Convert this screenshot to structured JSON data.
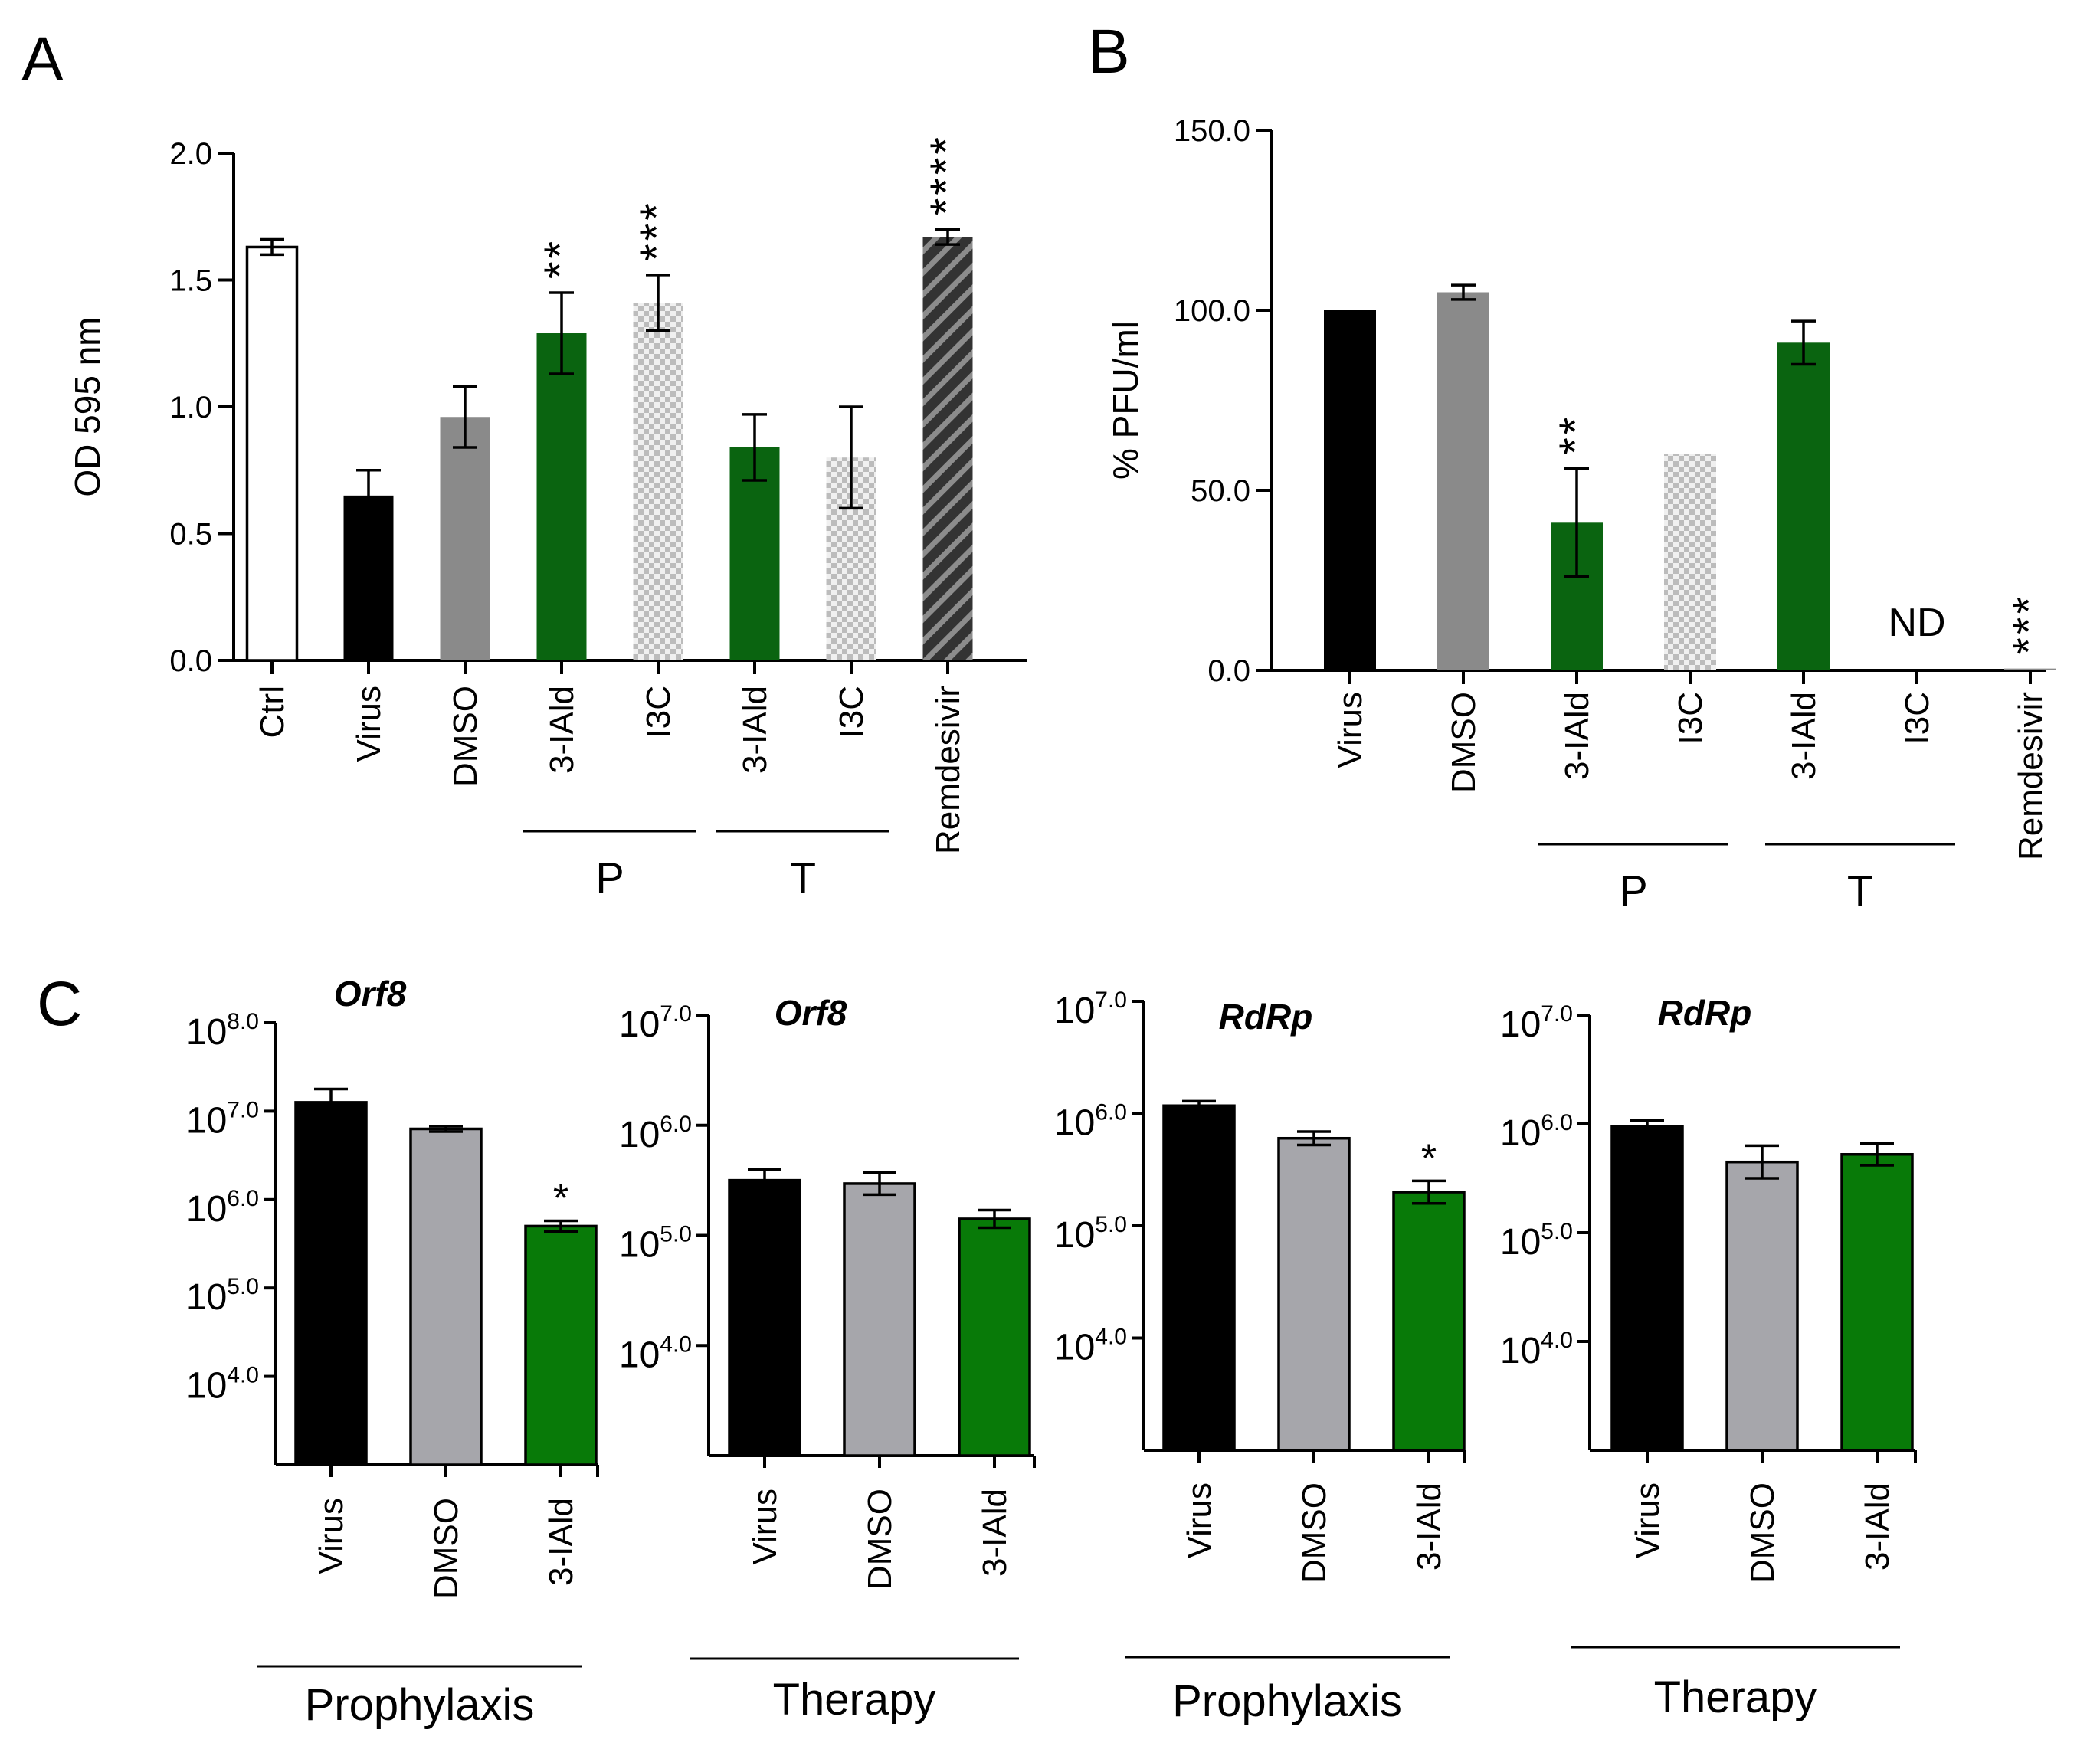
{
  "colors": {
    "black": "#000000",
    "dark_green": "#0a6410",
    "green": "#087a08",
    "gray": "#8a8a8a",
    "light_gray": "#a6a6ab",
    "white": "#ffffff",
    "checker_a": "#bcbcbc",
    "checker_b": "#f0f0f0",
    "stripe_dark": "#333333",
    "stripe_light": "#8c8c8c"
  },
  "panel_labels": {
    "a": "A",
    "b": "B",
    "c": "C"
  },
  "chart_data": [
    {
      "id": "A",
      "type": "bar",
      "title": "",
      "ylabel": "OD 595 nm",
      "xlabel": "",
      "ylim": [
        0,
        2.0
      ],
      "yticks": [
        "0.0",
        "0.5",
        "1.0",
        "1.5",
        "2.0"
      ],
      "categories": [
        "Ctrl",
        "Virus",
        "DMSO",
        "3-IAld",
        "I3C",
        "3-IAld",
        "I3C",
        "Remdesivir"
      ],
      "values": [
        1.63,
        0.65,
        0.96,
        1.29,
        1.41,
        0.84,
        0.8,
        1.67
      ],
      "errors": [
        0.03,
        0.1,
        0.12,
        0.16,
        0.11,
        0.13,
        0.2,
        0.03
      ],
      "significance": [
        "",
        "",
        "",
        "**",
        "***",
        "",
        "",
        "****"
      ],
      "fills": [
        "white",
        "black",
        "gray",
        "dark_green",
        "checker",
        "dark_green",
        "checker",
        "stripe"
      ],
      "groups": [
        {
          "label": "P",
          "from": 3,
          "to": 4
        },
        {
          "label": "T",
          "from": 5,
          "to": 6
        }
      ]
    },
    {
      "id": "B",
      "type": "bar",
      "title": "",
      "ylabel": "% PFU/ml",
      "xlabel": "",
      "ylim": [
        0,
        150
      ],
      "yticks": [
        "0.0",
        "50.0",
        "100.0",
        "150.0"
      ],
      "categories": [
        "Virus",
        "DMSO",
        "3-IAld",
        "I3C",
        "3-IAld",
        "I3C",
        "Remdesivir"
      ],
      "values": [
        100,
        105,
        41,
        60,
        91,
        null,
        0.5
      ],
      "errors": [
        0,
        2,
        15,
        0,
        6,
        0,
        0
      ],
      "significance": [
        "",
        "",
        "**",
        "",
        "",
        "",
        "***"
      ],
      "annotations": [
        "",
        "",
        "",
        "",
        "",
        "ND",
        ""
      ],
      "fills": [
        "black",
        "gray",
        "dark_green",
        "checker",
        "dark_green",
        "none",
        "gray"
      ],
      "groups": [
        {
          "label": "P",
          "from": 2,
          "to": 3
        },
        {
          "label": "T",
          "from": 4,
          "to": 5
        }
      ]
    },
    {
      "id": "C1",
      "type": "bar",
      "title": "Orf8",
      "scale": "log10",
      "ylabel": "",
      "ylim_log10": [
        3,
        8
      ],
      "yticks": [
        {
          "base": "10",
          "exp": "4.0"
        },
        {
          "base": "10",
          "exp": "5.0"
        },
        {
          "base": "10",
          "exp": "6.0"
        },
        {
          "base": "10",
          "exp": "7.0"
        },
        {
          "base": "10",
          "exp": "8.0"
        }
      ],
      "categories": [
        "Virus",
        "DMSO",
        "3-IAld"
      ],
      "values_log10": [
        7.1,
        6.8,
        5.7
      ],
      "errors_log10": [
        0.15,
        0.03,
        0.06
      ],
      "significance": [
        "",
        "",
        "*"
      ],
      "fills": [
        "black",
        "light_gray",
        "green"
      ],
      "group_label": "Prophylaxis"
    },
    {
      "id": "C2",
      "type": "bar",
      "title": "Orf8",
      "scale": "log10",
      "ylabel": "",
      "ylim_log10": [
        3,
        7
      ],
      "yticks": [
        {
          "base": "10",
          "exp": "4.0"
        },
        {
          "base": "10",
          "exp": "5.0"
        },
        {
          "base": "10",
          "exp": "6.0"
        },
        {
          "base": "10",
          "exp": "7.0"
        }
      ],
      "categories": [
        "Virus",
        "DMSO",
        "3-IAld"
      ],
      "values_log10": [
        5.5,
        5.47,
        5.15
      ],
      "errors_log10": [
        0.1,
        0.1,
        0.08
      ],
      "significance": [
        "",
        "",
        ""
      ],
      "fills": [
        "black",
        "light_gray",
        "green"
      ],
      "group_label": "Therapy"
    },
    {
      "id": "C3",
      "type": "bar",
      "title": "RdRp",
      "scale": "log10",
      "ylabel": "",
      "ylim_log10": [
        3,
        7
      ],
      "yticks": [
        {
          "base": "10",
          "exp": "4.0"
        },
        {
          "base": "10",
          "exp": "5.0"
        },
        {
          "base": "10",
          "exp": "6.0"
        },
        {
          "base": "10",
          "exp": "7.0"
        }
      ],
      "categories": [
        "Virus",
        "DMSO",
        "3-IAld"
      ],
      "values_log10": [
        6.07,
        5.78,
        5.3
      ],
      "errors_log10": [
        0.04,
        0.06,
        0.1
      ],
      "significance": [
        "",
        "",
        "*"
      ],
      "fills": [
        "black",
        "light_gray",
        "green"
      ],
      "group_label": "Prophylaxis"
    },
    {
      "id": "C4",
      "type": "bar",
      "title": "RdRp",
      "scale": "log10",
      "ylabel": "",
      "ylim_log10": [
        3,
        7
      ],
      "yticks": [
        {
          "base": "10",
          "exp": "4.0"
        },
        {
          "base": "10",
          "exp": "5.0"
        },
        {
          "base": "10",
          "exp": "6.0"
        },
        {
          "base": "10",
          "exp": "7.0"
        }
      ],
      "categories": [
        "Virus",
        "DMSO",
        "3-IAld"
      ],
      "values_log10": [
        5.98,
        5.65,
        5.72
      ],
      "errors_log10": [
        0.05,
        0.15,
        0.1
      ],
      "significance": [
        "",
        "",
        ""
      ],
      "fills": [
        "black",
        "light_gray",
        "green"
      ],
      "group_label": "Therapy"
    }
  ]
}
